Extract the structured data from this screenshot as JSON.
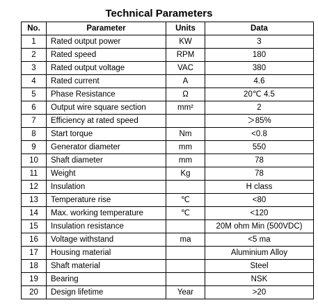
{
  "title": "Technical Parameters",
  "headers": {
    "no": "No.",
    "parameter": "Parameter",
    "units": "Units",
    "data": "Data"
  },
  "rows": [
    {
      "no": "1",
      "parameter": "Rated output power",
      "units": "KW",
      "data": "3"
    },
    {
      "no": "2",
      "parameter": "Rated speed",
      "units": "RPM",
      "data": "180"
    },
    {
      "no": "3",
      "parameter": "Rated output voltage",
      "units": "VAC",
      "data": "380"
    },
    {
      "no": "4",
      "parameter": "Rated current",
      "units": "A",
      "data": "4.6"
    },
    {
      "no": "5",
      "parameter": "Phase Resistance",
      "units": "Ω",
      "data": "20℃ 4.5"
    },
    {
      "no": "6",
      "parameter": "Output wire square section",
      "units": "mm²",
      "data": "2"
    },
    {
      "no": "7",
      "parameter": "Efficiency at rated speed",
      "units": "",
      "data": "＞85%"
    },
    {
      "no": "8",
      "parameter": "Start torque",
      "units": "Nm",
      "data": "<0.8"
    },
    {
      "no": "9",
      "parameter": "Generator diameter",
      "units": "mm",
      "data": "550"
    },
    {
      "no": "10",
      "parameter": "Shaft diameter",
      "units": "mm",
      "data": "78"
    },
    {
      "no": "11",
      "parameter": "Weight",
      "units": "Kg",
      "data": "78"
    },
    {
      "no": "12",
      "parameter": "Insulation",
      "units": "",
      "data": "H class"
    },
    {
      "no": "13",
      "parameter": "Temperature rise",
      "units": "℃",
      "data": "<80"
    },
    {
      "no": "14",
      "parameter": "Max. working temperature",
      "units": "℃",
      "data": "<120"
    },
    {
      "no": "15",
      "parameter": "Insulation resistance",
      "units": "",
      "data": "20M ohm Min (500VDC)"
    },
    {
      "no": "16",
      "parameter": "Voltage withstand",
      "units": "ma",
      "data": "<5 ma"
    },
    {
      "no": "17",
      "parameter": "Housing material",
      "units": "",
      "data": "Aluminium Alloy"
    },
    {
      "no": "18",
      "parameter": "Shaft material",
      "units": "",
      "data": "Steel"
    },
    {
      "no": "19",
      "parameter": "Bearing",
      "units": "",
      "data": "NSK"
    },
    {
      "no": "20",
      "parameter": "Design lifetime",
      "units": "Year",
      "data": ">20"
    }
  ]
}
